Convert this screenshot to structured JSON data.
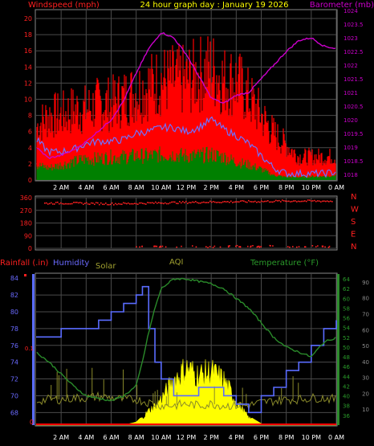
{
  "header": {
    "left": "Windspeed (mph)",
    "center": "24 hour graph day : January 19 2026",
    "right": "Barometer (mb)"
  },
  "colors": {
    "background": "#000000",
    "grid": "#4a4a4a",
    "wind_max": "#ff0000",
    "wind_avg": "#008000",
    "wind_speed_line": "#7070ff",
    "barometer": "#cc00cc",
    "direction": "#ff2020",
    "rain": "#ff0000",
    "humidity": "#5a6cff",
    "solar": "#ffff00",
    "solar_dim": "#8a8a2a",
    "temperature": "#2a8a2a",
    "axis_left_humidity": "#6a6aff",
    "axis_right_temp": "#2a9a2a",
    "axis_far_right": "#8a8a8a"
  },
  "time_labels": [
    "2 AM",
    "4 AM",
    "6 AM",
    "8 AM",
    "10 AM",
    "12 PM",
    "2 PM",
    "4 PM",
    "6 PM",
    "8 PM",
    "10 PM",
    "0 AM"
  ],
  "chart_data": [
    {
      "type": "line",
      "name": "wind-barometer",
      "title": "24 hour graph day : January 19 2026",
      "ylabel": "Windspeed (mph)",
      "y2label": "Barometer (mb)",
      "ylim": [
        0,
        21
      ],
      "y2lim": [
        1017.8,
        1024
      ],
      "yticks": [
        0,
        2,
        4,
        6,
        8,
        10,
        12,
        14,
        16,
        18,
        20
      ],
      "y2ticks": [
        "1018",
        "1018.5",
        "1019",
        "1019.5",
        "1020",
        "1020.5",
        "1021",
        "1021.5",
        "1022",
        "1022.5",
        "1023",
        "1023.5",
        "1024"
      ],
      "x_hours": [
        0,
        1,
        2,
        3,
        4,
        5,
        6,
        7,
        8,
        9,
        10,
        11,
        12,
        13,
        14,
        15,
        16,
        17,
        18,
        19,
        20,
        21,
        22,
        23,
        24
      ],
      "series": [
        {
          "key": "gust",
          "values": [
            9,
            11,
            11,
            12,
            12,
            13,
            13,
            14,
            15,
            16,
            17,
            17,
            17,
            18,
            19,
            17,
            17,
            14,
            11,
            8,
            6,
            4,
            4,
            4,
            4
          ]
        },
        {
          "key": "speed",
          "values": [
            5,
            3.5,
            3.5,
            3.8,
            4.5,
            4.8,
            4.8,
            5,
            5.8,
            6,
            6.5,
            6.5,
            6,
            6.5,
            7.5,
            6.3,
            5.5,
            4.5,
            3,
            1.5,
            0.8,
            0.8,
            0.8,
            0.8,
            1
          ]
        },
        {
          "key": "average",
          "values": [
            2.5,
            2,
            2.5,
            3,
            3.5,
            3.5,
            3.8,
            3.8,
            4,
            4,
            4.2,
            4.2,
            4,
            4,
            4.2,
            3.8,
            3,
            2.5,
            1.8,
            0.8,
            0.5,
            0.5,
            0.6,
            0.6,
            0.8
          ]
        },
        {
          "key": "barometer",
          "values": [
            1019.0,
            1018.6,
            1018.7,
            1018.9,
            1019.2,
            1019.6,
            1020.0,
            1020.7,
            1021.7,
            1022.6,
            1023.2,
            1023.0,
            1022.4,
            1021.6,
            1020.8,
            1020.6,
            1020.9,
            1021.0,
            1021.5,
            1022.0,
            1022.5,
            1022.9,
            1023.0,
            1022.7,
            1022.6
          ]
        }
      ]
    },
    {
      "type": "scatter",
      "name": "wind-direction",
      "ylim": [
        0,
        360
      ],
      "yticks": [
        "0",
        "90",
        "180",
        "270",
        "360"
      ],
      "right_labels": [
        "N",
        "W",
        "S",
        "E",
        "N"
      ],
      "x_hours": [
        0,
        2,
        4,
        6,
        8,
        10,
        12,
        14,
        16,
        18,
        20,
        22,
        24
      ],
      "values": [
        318,
        320,
        318,
        315,
        318,
        322,
        325,
        328,
        330,
        332,
        335,
        335,
        334
      ],
      "late_low_values": [
        10,
        12,
        14,
        8,
        16,
        11
      ]
    },
    {
      "type": "line",
      "name": "rain-humidity-solar-temp",
      "legend": [
        "Rainfall (.in)",
        "Humidity",
        "Solar",
        "AQI",
        "Temperature (°F)"
      ],
      "humidity_ticks": [
        "68",
        "70",
        "72",
        "74",
        "76",
        "78",
        "80",
        "82",
        "84"
      ],
      "temp_ticks": [
        "36",
        "38",
        "40",
        "42",
        "44",
        "46",
        "48",
        "50",
        "52",
        "54",
        "56",
        "58",
        "60",
        "62",
        "64"
      ],
      "far_right_ticks": [
        "10",
        "20",
        "30",
        "40",
        "50",
        "60",
        "70",
        "80",
        "90"
      ],
      "rain_ticks": [
        "0",
        "0.1"
      ],
      "humidity_range": [
        66.5,
        84.5
      ],
      "temp_range": [
        34,
        65
      ],
      "far_right_range": [
        0,
        95
      ],
      "x_hours": [
        0,
        1,
        2,
        3,
        4,
        5,
        6,
        7,
        8,
        8.5,
        9,
        9.5,
        10,
        11,
        12,
        13,
        14,
        15,
        16,
        17,
        18,
        19,
        20,
        21,
        22,
        23,
        24
      ],
      "humidity": [
        77,
        77,
        77.5,
        78,
        78,
        79,
        79.5,
        81,
        82,
        82.5,
        78,
        74,
        72,
        70,
        70,
        71,
        71,
        70,
        69,
        68,
        69.5,
        71,
        72.5,
        74,
        76,
        78,
        79
      ],
      "temperature": [
        49,
        47,
        44.5,
        42,
        40,
        39.5,
        39,
        40,
        42,
        47,
        53,
        58,
        62,
        64,
        64,
        63.5,
        63,
        62,
        60,
        58,
        55,
        52,
        50,
        49,
        48,
        51,
        52
      ],
      "solar": [
        0,
        0,
        0,
        0,
        0,
        0,
        0,
        0,
        2,
        6,
        12,
        16,
        22,
        38,
        48,
        42,
        45,
        38,
        20,
        6,
        1,
        0,
        0,
        0,
        0,
        0,
        0
      ],
      "aqi": [
        16,
        17,
        17,
        18,
        18,
        19,
        18,
        17,
        17,
        16,
        15,
        14,
        13,
        13,
        14,
        13,
        14,
        13,
        13,
        13,
        15,
        16,
        17,
        17,
        18,
        18,
        17
      ],
      "rainfall": [
        0,
        0,
        0,
        0,
        0,
        0,
        0,
        0,
        0,
        0,
        0,
        0,
        0,
        0,
        0,
        0,
        0,
        0,
        0,
        0,
        0,
        0,
        0,
        0,
        0,
        0,
        0
      ]
    }
  ]
}
